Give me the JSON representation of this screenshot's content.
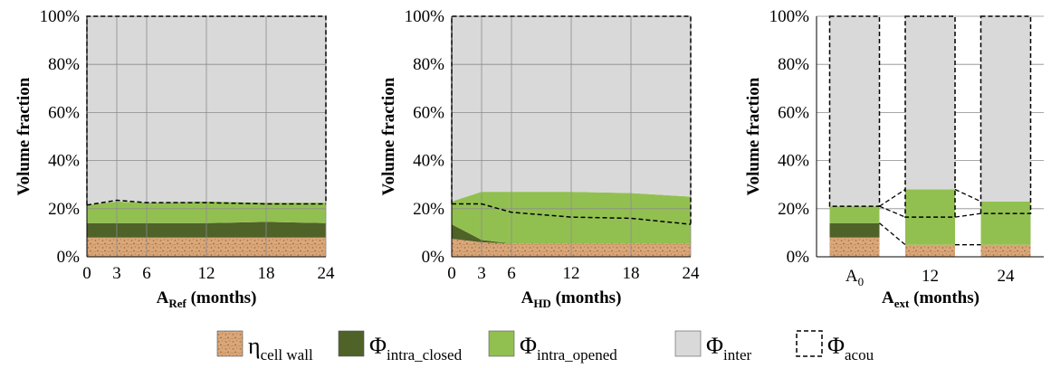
{
  "colors": {
    "cell_wall": "#d9a77a",
    "cell_wall_speckle": "#a8703f",
    "intra_closed": "#4f6228",
    "intra_opened": "#92c050",
    "inter": "#d9d9d9",
    "grid": "#8c8c8c"
  },
  "chart_data": [
    {
      "type": "area",
      "ylabel": "Volume fraction",
      "xlabel": {
        "main": "A",
        "sub": "Ref",
        "suffix": " (months)"
      },
      "x": [
        0,
        3,
        6,
        12,
        18,
        24
      ],
      "xticks": [
        "0",
        "3",
        "6",
        "12",
        "18",
        "24"
      ],
      "xlim": [
        0,
        24
      ],
      "ylim": [
        0,
        100
      ],
      "yticks": [
        "0%",
        "20%",
        "40%",
        "60%",
        "80%",
        "100%"
      ],
      "grid": "vertical at x ticks, horizontal at y ticks",
      "series": [
        {
          "name": "ηcell wall",
          "key": "cell_wall",
          "values": [
            8,
            8,
            8,
            8,
            8,
            8
          ]
        },
        {
          "name": "Φintra_closed",
          "key": "intra_closed",
          "values": [
            6,
            6,
            6,
            6,
            6.5,
            6
          ]
        },
        {
          "name": "Φintra_opened",
          "key": "intra_opened",
          "values": [
            7.5,
            9,
            8.5,
            9,
            8,
            8.5
          ]
        },
        {
          "name": "Φinter",
          "key": "inter",
          "values": [
            78.5,
            77,
            77.5,
            77,
            77.5,
            77.5
          ]
        }
      ],
      "acou_line": [
        21.5,
        23.5,
        22.5,
        22.5,
        22,
        22
      ]
    },
    {
      "type": "area",
      "ylabel": "Volume fraction",
      "xlabel": {
        "main": "A",
        "sub": "HD",
        "suffix": " (months)"
      },
      "x": [
        0,
        3,
        6,
        12,
        18,
        24
      ],
      "xticks": [
        "0",
        "3",
        "6",
        "12",
        "18",
        "24"
      ],
      "xlim": [
        0,
        24
      ],
      "ylim": [
        0,
        100
      ],
      "yticks": [
        "0%",
        "20%",
        "40%",
        "60%",
        "80%",
        "100%"
      ],
      "grid": "vertical at x ticks, horizontal at y ticks",
      "series": [
        {
          "name": "ηcell wall",
          "key": "cell_wall",
          "values": [
            7.5,
            6,
            5.5,
            5.5,
            5.5,
            5.5
          ]
        },
        {
          "name": "Φintra_closed",
          "key": "intra_closed",
          "values": [
            6,
            1,
            0,
            0,
            0,
            0
          ]
        },
        {
          "name": "Φintra_opened",
          "key": "intra_opened",
          "values": [
            9.5,
            20,
            21.5,
            21.5,
            21,
            19.5
          ]
        },
        {
          "name": "Φinter",
          "key": "inter",
          "values": [
            77,
            73,
            73,
            73,
            73.5,
            75
          ]
        }
      ],
      "acou_line": [
        22,
        22,
        18.5,
        16.5,
        16,
        13.5
      ]
    },
    {
      "type": "bar",
      "ylabel": "Volume fraction",
      "xlabel": {
        "main": "A",
        "sub": "ext",
        "suffix": " (months)"
      },
      "categories": [
        {
          "main": "A",
          "sub": "0"
        },
        {
          "main": "12",
          "sub": ""
        },
        {
          "main": "24",
          "sub": ""
        }
      ],
      "ylim": [
        0,
        100
      ],
      "yticks": [
        "0%",
        "20%",
        "40%",
        "60%",
        "80%",
        "100%"
      ],
      "grid": "horizontal at y ticks",
      "series": [
        {
          "name": "ηcell wall",
          "key": "cell_wall",
          "values": [
            8,
            5,
            5
          ]
        },
        {
          "name": "Φintra_closed",
          "key": "intra_closed",
          "values": [
            6,
            0,
            0
          ]
        },
        {
          "name": "Φintra_opened",
          "key": "intra_opened",
          "values": [
            7,
            23,
            18
          ]
        },
        {
          "name": "Φinter",
          "key": "inter",
          "values": [
            79,
            72,
            77
          ]
        }
      ],
      "acou_box_bottom": [
        21,
        16.5,
        18
      ]
    }
  ],
  "legend": [
    {
      "key": "cell_wall",
      "main": "η",
      "sub": "cell wall"
    },
    {
      "key": "intra_closed",
      "main": "Φ",
      "sub": "intra_closed"
    },
    {
      "key": "intra_opened",
      "main": "Φ",
      "sub": "intra_opened"
    },
    {
      "key": "inter",
      "main": "Φ",
      "sub": "inter"
    },
    {
      "key": "acou",
      "main": "Φ",
      "sub": "acou"
    }
  ]
}
